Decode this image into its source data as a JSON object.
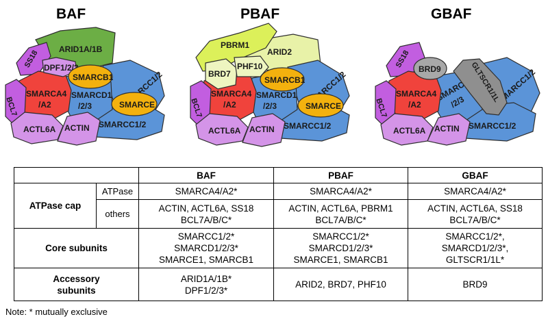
{
  "complexes": [
    {
      "name": "BAF",
      "subunits": {
        "ss18": "SS18",
        "arid": "ARID1A/1B",
        "dpf": "DPF1/2/3",
        "smarcb1": "SMARCB1",
        "smarca4": [
          "SMARCA4",
          "/A2"
        ],
        "bcl7": "BCL7",
        "smarcc_top": "SMARCC1/2",
        "smarcd1": [
          "SMARCD1",
          "/2/3"
        ],
        "smarce": "SMARCE",
        "actl6a": "ACTL6A",
        "actin": "ACTIN",
        "smarcc_bottom": "SMARCC1/2"
      }
    },
    {
      "name": "PBAF",
      "subunits": {
        "pbrm1": "PBRM1",
        "arid2": "ARID2",
        "brd7": "BRD7",
        "phf10": "PHF10",
        "smarcb1": "SMARCB1",
        "smarca4": [
          "SMARCA4",
          "/A2"
        ],
        "bcl7": "BCL7",
        "smarcc_top": "SMARCC1/2",
        "smarcd1": [
          "SMARCD1",
          "/2/3"
        ],
        "smarce": "SMARCE",
        "actl6a": "ACTL6A",
        "actin": "ACTIN",
        "smarcc_bottom": "SMARCC1/2"
      }
    },
    {
      "name": "GBAF",
      "subunits": {
        "ss18": "SS18",
        "brd9": "BRD9",
        "gltscr1": "GLTSCR1/1L",
        "smarcc_top": "SMARCC1/2",
        "smarca4": [
          "SMARCA4",
          "/A2"
        ],
        "bcl7": "BCL7",
        "smarcd1": [
          "SMARCD1",
          "/2/3"
        ],
        "actl6a": "ACTL6A",
        "actin": "ACTIN",
        "smarcc_bottom": "SMARCC1/2"
      }
    }
  ],
  "colors": {
    "arid1a": "#6cae45",
    "ss18": "#c25ee0",
    "dpf": "#d494e8",
    "smarcb1": "#f3b10e",
    "smarca4": "#f0433c",
    "bcl7": "#c25ee0",
    "smarcc": "#5b94d8",
    "smarcd1": "#5b94d8",
    "smarce": "#f3b10e",
    "actl6a": "#d494e8",
    "actin": "#d494e8",
    "pbrm1": "#dcf05a",
    "arid2": "#e8f2a8",
    "brd7": "#eef5c0",
    "phf10": "#eef5c0",
    "brd9": "#a8a8a8",
    "gltscr1": "#8f8f8f"
  },
  "table": {
    "headers": [
      "BAF",
      "PBAF",
      "GBAF"
    ],
    "rows": [
      {
        "group": "ATPase cap",
        "sub": "ATPase",
        "baf": [
          "SMARCA4/A2*"
        ],
        "pbaf": [
          "SMARCA4/A2*"
        ],
        "gbaf": [
          "SMARCA4/A2*"
        ]
      },
      {
        "group": "",
        "sub": "others",
        "baf": [
          "ACTIN, ACTL6A, SS18",
          "BCL7A/B/C*"
        ],
        "pbaf": [
          "ACTIN, ACTL6A, PBRM1",
          "BCL7A/B/C*"
        ],
        "gbaf": [
          "ACTIN, ACTL6A, SS18",
          "BCL7A/B/C*"
        ]
      },
      {
        "group": "Core subunits",
        "sub": "",
        "baf": [
          "SMARCC1/2*",
          "SMARCD1/2/3*",
          "SMARCE1,  SMARCB1"
        ],
        "pbaf": [
          "SMARCC1/2*",
          "SMARCD1/2/3*",
          "SMARCE1,  SMARCB1"
        ],
        "gbaf": [
          "SMARCC1/2*,",
          "SMARCD1/2/3*,",
          "GLTSCR1/1L*"
        ]
      },
      {
        "group": [
          "Accessory",
          "subunits"
        ],
        "sub": "",
        "baf": [
          "ARID1A/1B*",
          "DPF1/2/3*"
        ],
        "pbaf": [
          "ARID2, BRD7, PHF10"
        ],
        "gbaf": [
          "BRD9"
        ]
      }
    ]
  },
  "note": "Note: * mutually exclusive"
}
